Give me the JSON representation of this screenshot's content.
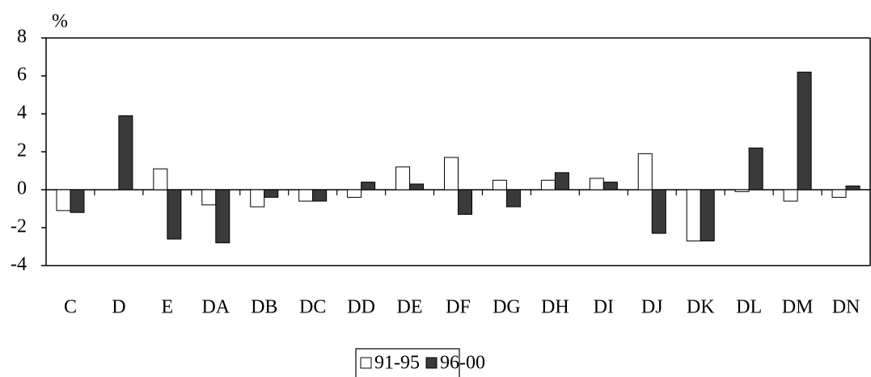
{
  "chart_data": {
    "type": "bar",
    "y_label": "%",
    "categories": [
      "C",
      "D",
      "E",
      "DA",
      "DB",
      "DC",
      "DD",
      "DE",
      "DF",
      "DG",
      "DH",
      "DI",
      "DJ",
      "DK",
      "DL",
      "DM",
      "DN"
    ],
    "series": [
      {
        "name": "91-95",
        "color": "#ffffff",
        "values": [
          -1.1,
          0,
          1.1,
          -0.8,
          -0.9,
          -0.6,
          -0.4,
          1.2,
          1.7,
          0.5,
          0.5,
          0.6,
          1.9,
          -2.7,
          -0.1,
          -0.6,
          -0.4
        ]
      },
      {
        "name": "96-00",
        "color": "#3a3a3a",
        "values": [
          -1.2,
          3.9,
          -2.6,
          -2.8,
          -0.4,
          -0.6,
          0.4,
          0.3,
          -1.3,
          -0.9,
          0.9,
          0.4,
          -2.3,
          -2.7,
          2.2,
          6.2,
          0.2
        ]
      }
    ],
    "ylim": [
      -4,
      8
    ],
    "yticks": [
      -4,
      -2,
      0,
      2,
      4,
      6,
      8
    ],
    "legend": "bottom"
  }
}
